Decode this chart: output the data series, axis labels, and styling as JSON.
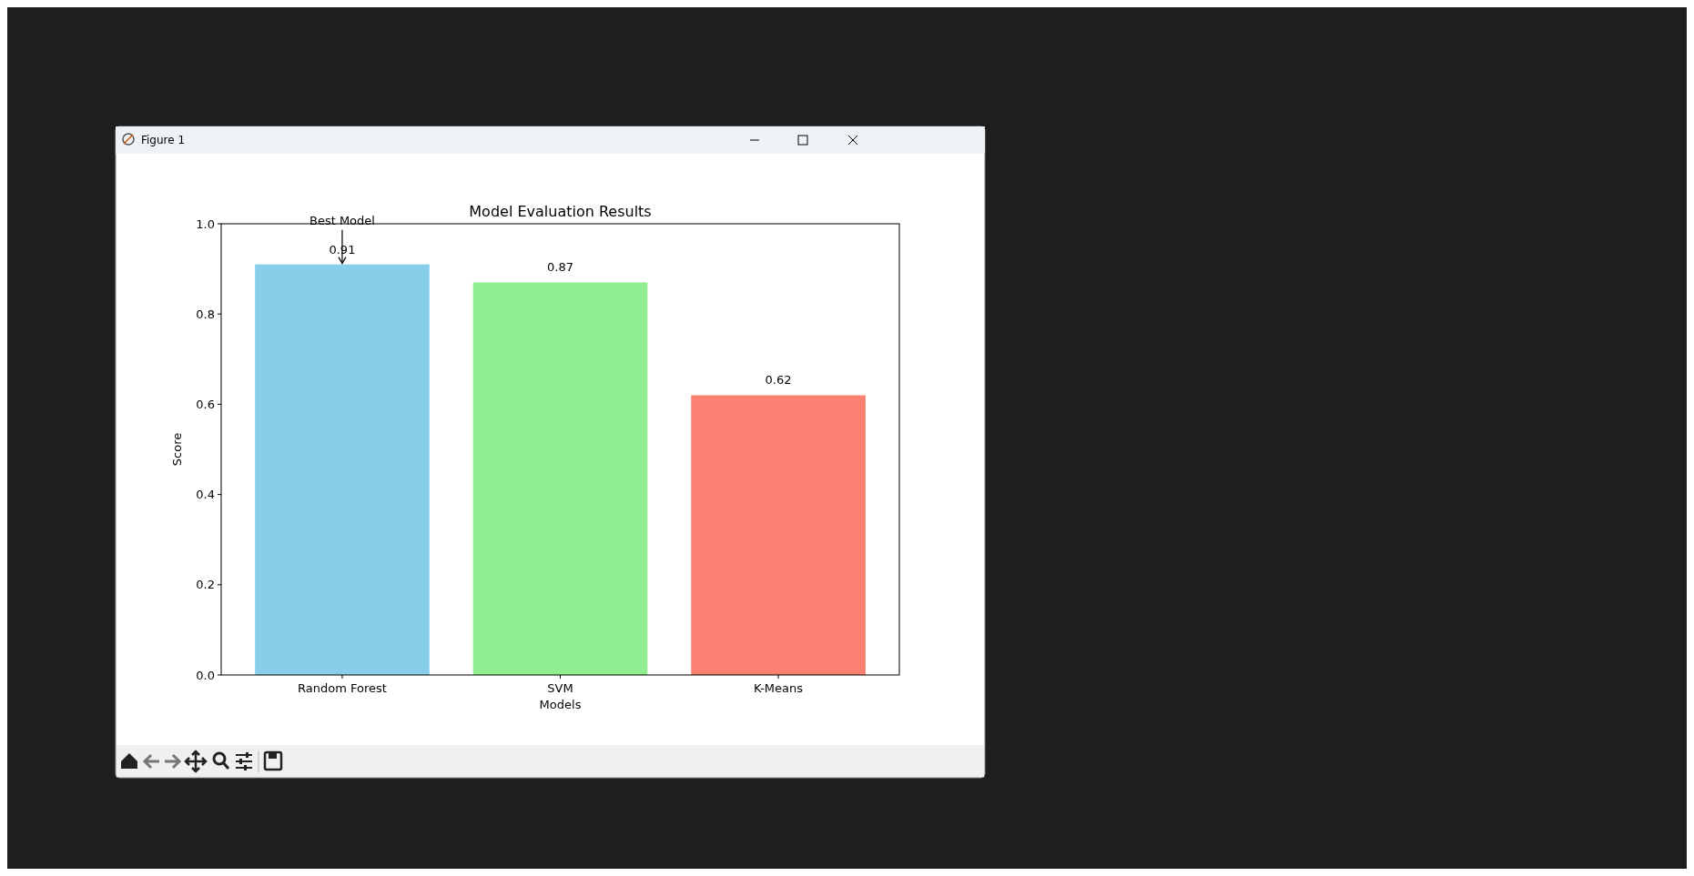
{
  "chart_data": {
    "type": "bar",
    "title": "Model Evaluation Results",
    "xlabel": "Models",
    "ylabel": "Score",
    "categories": [
      "Random Forest",
      "SVM",
      "K-Means"
    ],
    "values": [
      0.91,
      0.87,
      0.62
    ],
    "colors": [
      "#87ceeb",
      "#90ee90",
      "#fa8072"
    ],
    "ylim": [
      0,
      1
    ],
    "yticks": [
      {
        "value": 0,
        "label": "0.0"
      },
      {
        "value": 0.2,
        "label": "0.2"
      },
      {
        "value": 0.4,
        "label": "0.4"
      },
      {
        "value": 0.6,
        "label": "0.6"
      },
      {
        "value": 0.8,
        "label": "0.8"
      },
      {
        "value": 1,
        "label": "1.0"
      }
    ],
    "data_labels": true,
    "annotations": [
      "Figure 1",
      {
        "text": "Best Model",
        "x": "Random Forest",
        "y": 0.91
      }
    ]
  }
}
